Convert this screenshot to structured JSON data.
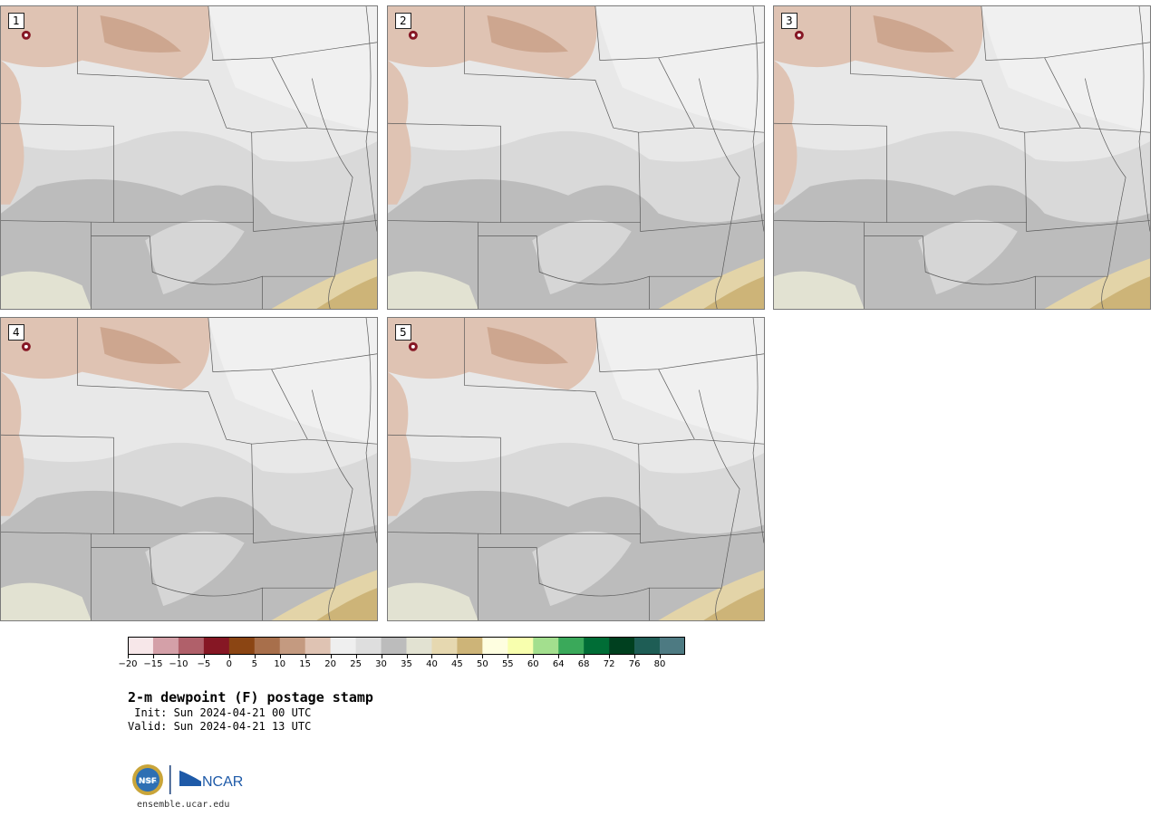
{
  "panels": [
    {
      "label": "1"
    },
    {
      "label": "2"
    },
    {
      "label": "3"
    },
    {
      "label": "4"
    },
    {
      "label": "5"
    }
  ],
  "colorbar": {
    "colors": [
      "#f7e7e9",
      "#d4a0a8",
      "#b0606a",
      "#861724",
      "#8b4513",
      "#a86f4b",
      "#c49a80",
      "#dfc3b3",
      "#efefef",
      "#dedede",
      "#bcbcbc",
      "#e2e2d2",
      "#e6d8b0",
      "#cdb478",
      "#fefee0",
      "#f8ffae",
      "#a3df8e",
      "#3aa95a",
      "#006d36",
      "#00401f",
      "#1e5d55",
      "#4d7a82"
    ],
    "tick_labels": [
      "−20",
      "−15",
      "−10",
      "−5",
      "0",
      "5",
      "10",
      "15",
      "20",
      "25",
      "30",
      "35",
      "40",
      "45",
      "50",
      "55",
      "60",
      "64",
      "68",
      "72",
      "76",
      "80"
    ]
  },
  "title": "2-m dewpoint (F) postage stamp",
  "init": " Init: Sun 2024-04-21 00 UTC",
  "valid": "Valid: Sun 2024-04-21 13 UTC",
  "logos": {
    "nsf": "NSF",
    "ncar": "NCAR"
  },
  "site": "ensemble.ucar.edu"
}
